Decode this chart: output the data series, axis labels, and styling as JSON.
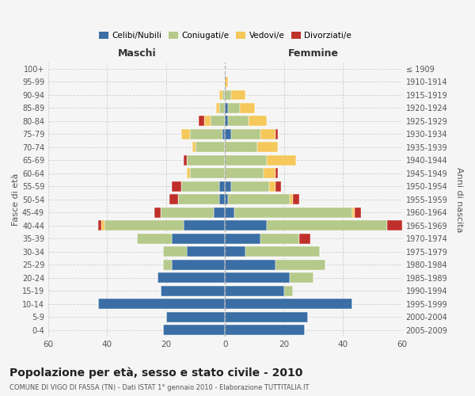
{
  "age_groups": [
    "0-4",
    "5-9",
    "10-14",
    "15-19",
    "20-24",
    "25-29",
    "30-34",
    "35-39",
    "40-44",
    "45-49",
    "50-54",
    "55-59",
    "60-64",
    "65-69",
    "70-74",
    "75-79",
    "80-84",
    "85-89",
    "90-94",
    "95-99",
    "100+"
  ],
  "birth_years": [
    "2005-2009",
    "2000-2004",
    "1995-1999",
    "1990-1994",
    "1985-1989",
    "1980-1984",
    "1975-1979",
    "1970-1974",
    "1965-1969",
    "1960-1964",
    "1955-1959",
    "1950-1954",
    "1945-1949",
    "1940-1944",
    "1935-1939",
    "1930-1934",
    "1925-1929",
    "1920-1924",
    "1915-1919",
    "1910-1914",
    "≤ 1909"
  ],
  "maschi": {
    "celibi": [
      21,
      20,
      43,
      22,
      23,
      18,
      13,
      18,
      14,
      4,
      2,
      2,
      0,
      0,
      0,
      1,
      0,
      0,
      0,
      0,
      0
    ],
    "coniugati": [
      0,
      0,
      0,
      0,
      0,
      3,
      8,
      12,
      27,
      18,
      14,
      13,
      12,
      13,
      10,
      11,
      5,
      2,
      1,
      0,
      0
    ],
    "vedovi": [
      0,
      0,
      0,
      0,
      0,
      0,
      0,
      0,
      1,
      0,
      0,
      0,
      1,
      0,
      1,
      3,
      2,
      1,
      1,
      0,
      0
    ],
    "divorziati": [
      0,
      0,
      0,
      0,
      0,
      0,
      0,
      0,
      1,
      2,
      3,
      3,
      0,
      1,
      0,
      0,
      2,
      0,
      0,
      0,
      0
    ]
  },
  "femmine": {
    "nubili": [
      27,
      28,
      43,
      20,
      22,
      17,
      7,
      12,
      14,
      3,
      1,
      2,
      0,
      0,
      0,
      2,
      1,
      1,
      0,
      0,
      0
    ],
    "coniugate": [
      0,
      0,
      0,
      3,
      8,
      17,
      25,
      13,
      41,
      40,
      21,
      13,
      13,
      14,
      11,
      10,
      7,
      4,
      2,
      0,
      0
    ],
    "vedove": [
      0,
      0,
      0,
      0,
      0,
      0,
      0,
      0,
      0,
      1,
      1,
      2,
      4,
      10,
      7,
      5,
      6,
      5,
      5,
      1,
      0
    ],
    "divorziate": [
      0,
      0,
      0,
      0,
      0,
      0,
      0,
      4,
      5,
      2,
      2,
      2,
      1,
      0,
      0,
      1,
      0,
      0,
      0,
      0,
      0
    ]
  },
  "colors": {
    "celibi": "#3a6ea5",
    "coniugati": "#b5c98a",
    "vedovi": "#f5c85c",
    "divorziati": "#c0302a"
  },
  "title": "Popolazione per età, sesso e stato civile - 2010",
  "subtitle": "COMUNE DI VIGO DI FASSA (TN) - Dati ISTAT 1° gennaio 2010 - Elaborazione TUTTITALIA.IT",
  "xlabel_left": "Maschi",
  "xlabel_right": "Femmine",
  "ylabel_left": "Fasce di età",
  "ylabel_right": "Anni di nascita",
  "xlim": 60,
  "bg_color": "#f5f5f5",
  "grid_color": "#cccccc"
}
